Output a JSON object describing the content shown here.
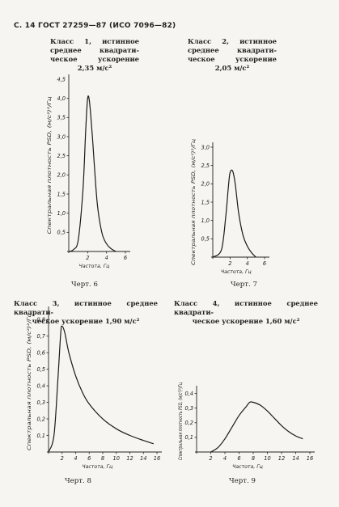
{
  "page_header": "С. 14 ГОСТ 27259—87 (ИСО 7096—82)",
  "figures": [
    {
      "caption_lines": [
        "Класс 1, истинное",
        "среднее квадрати-",
        "ческое ускорение"
      ],
      "caption_value": "2,35 м/с²",
      "figure_label": "Черт. 6",
      "ylabel": "Спектральная плотность PSD, (м/с²)²/Гц",
      "xlabel": "Частота, Гц",
      "y_ticks": [
        "4,0",
        "3,5",
        "3,0",
        "2,5",
        "2,0",
        "1,5",
        "1,0",
        "0,5"
      ],
      "y_top_label": "4,5",
      "x_ticks": [
        "2",
        "4",
        "6"
      ]
    },
    {
      "caption_lines": [
        "Класс 2, истинное",
        "среднее квадрати-",
        "ческое ускорение"
      ],
      "caption_value": "2,05 м/с²",
      "figure_label": "Черт. 7",
      "ylabel": "Спектральная плотность PSD, (м/с²)²/Гц",
      "xlabel": "Частота, Гц",
      "y_ticks": [
        "3,0",
        "2,5",
        "2,0",
        "1,5",
        "1,0",
        "0,5"
      ],
      "x_ticks": [
        "2",
        "4",
        "6"
      ]
    },
    {
      "caption_lines": [
        "Класс 3, истинное среднее квадрати-",
        "ческое ускорение 1,90 м/с²"
      ],
      "figure_label": "Черт. 8",
      "ylabel": "Спектральная плотность PSD, (м/с²)²/Гц",
      "xlabel": "Частота, Гц",
      "y_ticks": [
        "0,8",
        "0,7",
        "0,6",
        "0,5",
        "0,4",
        "0,3",
        "0,2",
        "0,1"
      ],
      "x_ticks": [
        "2",
        "4",
        "6",
        "8",
        "10",
        "12",
        "14",
        "16"
      ]
    },
    {
      "caption_lines": [
        "Класс 4, истинное среднее квадрати-",
        "ческое ускорение 1,60 м/с²"
      ],
      "figure_label": "Черт. 9",
      "ylabel": "Спектральная плотность PSD, (м/с²)²/Гц",
      "xlabel": "Частота, Гц",
      "y_ticks": [
        "0,4",
        "0,3",
        "0,2",
        "0,1"
      ],
      "x_ticks": [
        "2",
        "4",
        "6",
        "8",
        "10",
        "12",
        "14",
        "16"
      ]
    }
  ],
  "chart_data": [
    {
      "type": "line",
      "series": [
        {
          "x": [
            0,
            0.5,
            1,
            1.5,
            1.8,
            2,
            2.2,
            2.5,
            3,
            3.5,
            4,
            4.5,
            5
          ],
          "y": [
            0,
            0.05,
            0.3,
            1.6,
            3.2,
            4.0,
            3.9,
            3.0,
            1.3,
            0.5,
            0.2,
            0.07,
            0
          ]
        }
      ],
      "xlim": [
        0,
        6
      ],
      "ylim": [
        0,
        4.5
      ]
    },
    {
      "type": "line",
      "series": [
        {
          "x": [
            0,
            1,
            1.5,
            1.8,
            2,
            2.3,
            2.6,
            3,
            3.5,
            4,
            4.5,
            5
          ],
          "y": [
            0,
            0.2,
            1.1,
            1.9,
            2.3,
            2.35,
            2.0,
            1.2,
            0.6,
            0.3,
            0.12,
            0
          ]
        }
      ],
      "xlim": [
        0,
        6
      ],
      "ylim": [
        0,
        3.0
      ]
    },
    {
      "type": "line",
      "series": [
        {
          "x": [
            0,
            0.8,
            1.4,
            1.8,
            2,
            2.4,
            3,
            4,
            5,
            6,
            8,
            10,
            12,
            14,
            15.5
          ],
          "y": [
            0,
            0.1,
            0.45,
            0.72,
            0.76,
            0.72,
            0.6,
            0.46,
            0.36,
            0.29,
            0.2,
            0.14,
            0.1,
            0.07,
            0.05
          ]
        }
      ],
      "xlim": [
        0,
        16
      ],
      "ylim": [
        0,
        0.8
      ]
    },
    {
      "type": "line",
      "series": [
        {
          "x": [
            2,
            3,
            4,
            5,
            6,
            7,
            7.5,
            8,
            9,
            10,
            11,
            12,
            13,
            14,
            15
          ],
          "y": [
            0,
            0.03,
            0.09,
            0.17,
            0.25,
            0.31,
            0.34,
            0.34,
            0.32,
            0.28,
            0.23,
            0.18,
            0.14,
            0.11,
            0.09
          ]
        }
      ],
      "xlim": [
        0,
        16
      ],
      "ylim": [
        0,
        0.4
      ]
    }
  ]
}
